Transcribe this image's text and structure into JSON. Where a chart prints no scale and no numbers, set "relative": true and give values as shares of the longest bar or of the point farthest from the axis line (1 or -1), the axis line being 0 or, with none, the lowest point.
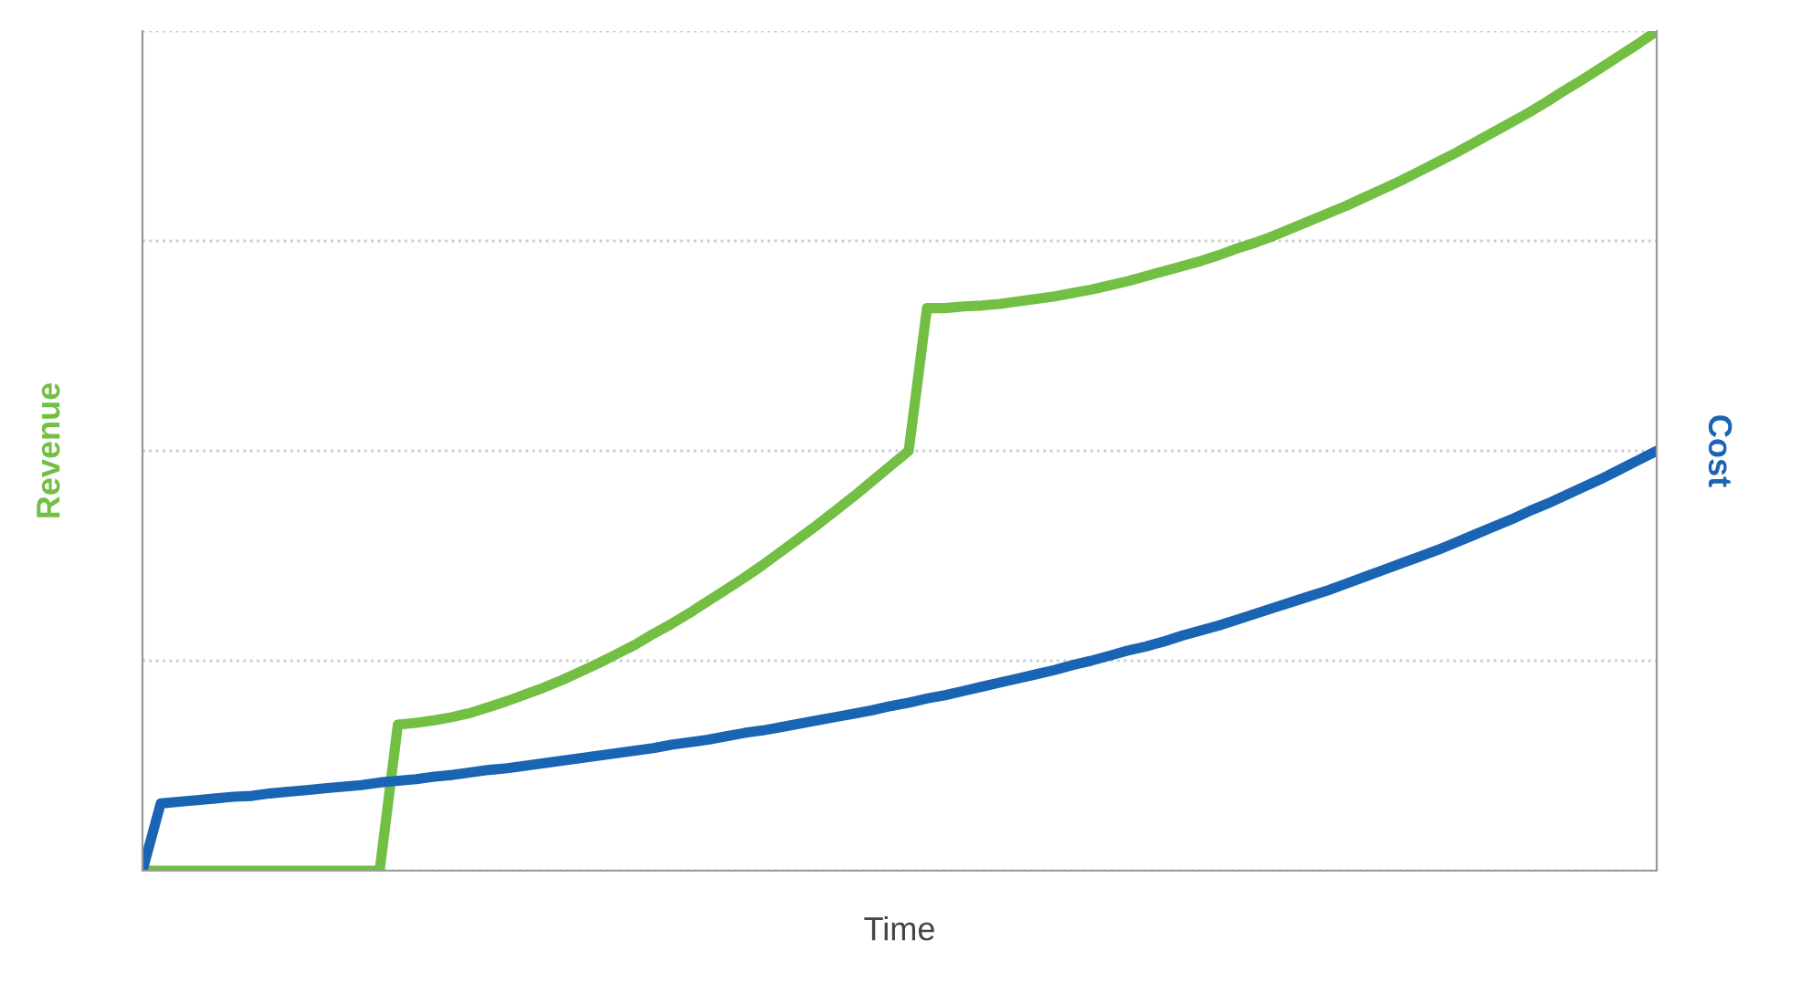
{
  "chart_data": {
    "type": "line",
    "relative": true,
    "xlabel": "Time",
    "ylabel": "Revenue",
    "y2label": "Cost",
    "grid": "y",
    "legend": false,
    "marker": "none",
    "line_style": "solid",
    "tick_labels": false,
    "categories": [
      null,
      null,
      null,
      null,
      null,
      null,
      null,
      null,
      null,
      null,
      null,
      null,
      null,
      null,
      null,
      null,
      null,
      null,
      null,
      null,
      null,
      null,
      null,
      null,
      null,
      null,
      null,
      null,
      null,
      null,
      null,
      null,
      null,
      null,
      null,
      null,
      null,
      null,
      null,
      null,
      null,
      null,
      null,
      null,
      null,
      null,
      null,
      null,
      null,
      null,
      null,
      null,
      null,
      null,
      null,
      null,
      null,
      null,
      null,
      null,
      null,
      null,
      null,
      null,
      null,
      null,
      null,
      null,
      null,
      null,
      null,
      null,
      null,
      null,
      null,
      null,
      null,
      null,
      null,
      null,
      null,
      null,
      null,
      null
    ],
    "series": [
      {
        "color": "#72bf44",
        "values": [
          0,
          0,
          0,
          0,
          0,
          0,
          0,
          0,
          0,
          0,
          0,
          0,
          0,
          0,
          0.174,
          0.176,
          0.179,
          0.183,
          0.188,
          0.195,
          0.202,
          0.21,
          0.218,
          0.227,
          0.237,
          0.247,
          0.258,
          0.269,
          0.282,
          0.294,
          0.307,
          0.321,
          0.335,
          0.349,
          0.364,
          0.38,
          0.396,
          0.412,
          0.429,
          0.446,
          0.464,
          0.482,
          0.5,
          0.67,
          0.67,
          0.672,
          0.673,
          0.675,
          0.678,
          0.681,
          0.684,
          0.688,
          0.692,
          0.697,
          0.702,
          0.708,
          0.714,
          0.72,
          0.726,
          0.733,
          0.741,
          0.748,
          0.756,
          0.765,
          0.774,
          0.783,
          0.792,
          0.802,
          0.812,
          0.822,
          0.833,
          0.844,
          0.855,
          0.867,
          0.879,
          0.891,
          0.903,
          0.916,
          0.93,
          0.943,
          0.957,
          0.971,
          0.985,
          1.0
        ]
      },
      {
        "color": "#1a64b4",
        "values": [
          0,
          0.08,
          0.082,
          0.084,
          0.086,
          0.088,
          0.089,
          0.092,
          0.094,
          0.096,
          0.098,
          0.1,
          0.102,
          0.105,
          0.107,
          0.109,
          0.112,
          0.114,
          0.117,
          0.12,
          0.122,
          0.125,
          0.128,
          0.131,
          0.134,
          0.137,
          0.14,
          0.143,
          0.146,
          0.15,
          0.153,
          0.156,
          0.16,
          0.164,
          0.167,
          0.171,
          0.175,
          0.179,
          0.183,
          0.187,
          0.191,
          0.196,
          0.2,
          0.205,
          0.209,
          0.214,
          0.219,
          0.224,
          0.229,
          0.234,
          0.239,
          0.245,
          0.25,
          0.256,
          0.262,
          0.267,
          0.273,
          0.28,
          0.286,
          0.292,
          0.299,
          0.306,
          0.313,
          0.32,
          0.327,
          0.334,
          0.342,
          0.35,
          0.358,
          0.366,
          0.374,
          0.382,
          0.391,
          0.4,
          0.409,
          0.418,
          0.428,
          0.437,
          0.447,
          0.457,
          0.467,
          0.478,
          0.489,
          0.5
        ]
      }
    ]
  }
}
